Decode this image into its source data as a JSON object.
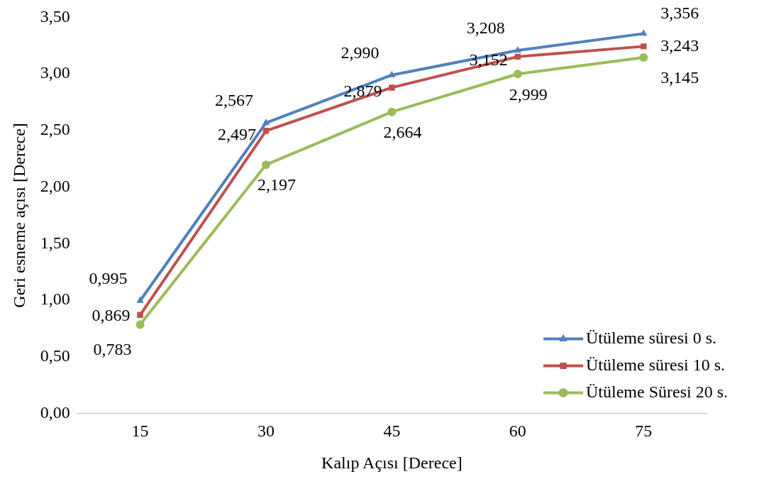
{
  "chart_data": {
    "type": "line",
    "xlabel": "Kalıp Açısı [Derece]",
    "ylabel": "Geri esneme açısı [Derece]",
    "categories": [
      "15",
      "30",
      "45",
      "60",
      "75"
    ],
    "series": [
      {
        "name": "Ütüleme süresi 0 s.",
        "color": "#4f81bd",
        "marker": "triangle",
        "values": [
          0.995,
          2.567,
          2.99,
          3.208,
          3.356
        ],
        "value_labels": [
          "0,995",
          "2,567",
          "2,990",
          "3,208",
          "3,356"
        ]
      },
      {
        "name": "Ütüleme süresi 10 s.",
        "color": "#c0504d",
        "marker": "square",
        "values": [
          0.869,
          2.497,
          2.879,
          3.152,
          3.243
        ],
        "value_labels": [
          "0,869",
          "2,497",
          "2,879",
          "3,152",
          "3,243"
        ]
      },
      {
        "name": "Ütüleme Süresi 20 s.",
        "color": "#9bbb59",
        "marker": "circle",
        "values": [
          0.783,
          2.197,
          2.664,
          2.999,
          3.145
        ],
        "value_labels": [
          "0,783",
          "2,197",
          "2,664",
          "2,999",
          "3,145"
        ]
      }
    ],
    "ylim": [
      0,
      3.5
    ],
    "yticks": [
      {
        "value": 0,
        "label": "0,00"
      },
      {
        "value": 0.5,
        "label": "0,50"
      },
      {
        "value": 1,
        "label": "1,00"
      },
      {
        "value": 1.5,
        "label": "1,50"
      },
      {
        "value": 2,
        "label": "2,00"
      },
      {
        "value": 2.5,
        "label": "2,50"
      },
      {
        "value": 3,
        "label": "3,00"
      },
      {
        "value": 3.5,
        "label": "3,50"
      }
    ],
    "grid": false,
    "legend": "bottom right",
    "line_style": "solid"
  }
}
